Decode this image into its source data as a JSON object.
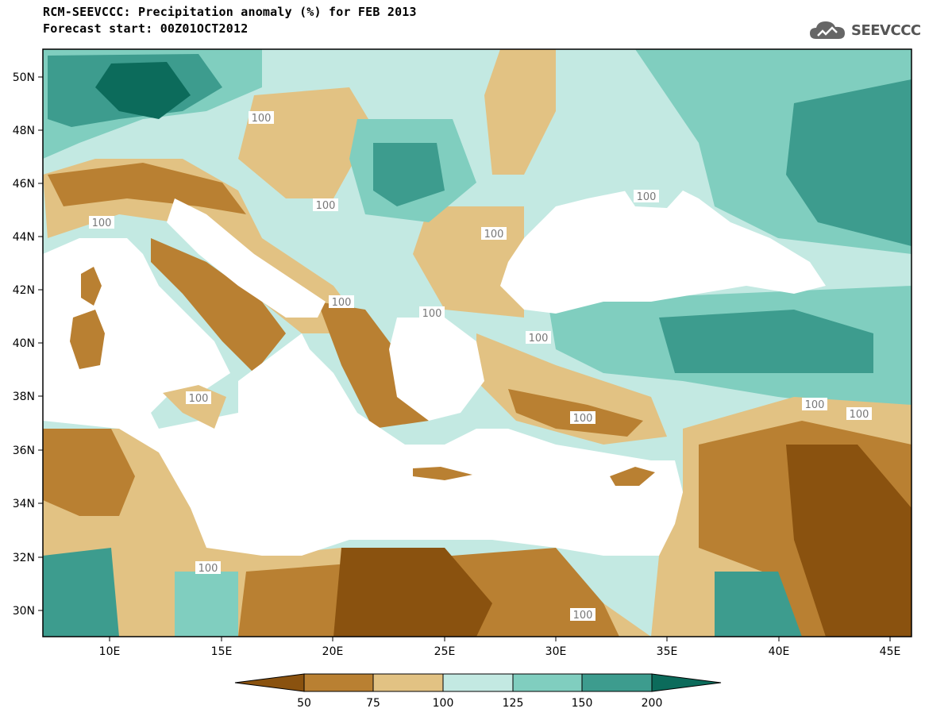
{
  "header": {
    "title_line1": "RCM-SEEVCCC: Precipitation anomaly (%) for FEB 2013",
    "title_line2": "Forecast start: 00Z01OCT2012",
    "logo_text": "SEEVCCC"
  },
  "map": {
    "lat_labels": [
      "50N",
      "48N",
      "46N",
      "44N",
      "42N",
      "40N",
      "38N",
      "36N",
      "34N",
      "32N",
      "30N"
    ],
    "lon_labels": [
      "10E",
      "15E",
      "20E",
      "25E",
      "30E",
      "35E",
      "40E",
      "45E"
    ],
    "contour_label": "100",
    "region_bounds": {
      "lon": [
        7,
        46
      ],
      "lat": [
        29,
        51
      ]
    }
  },
  "legend": {
    "levels": [
      "50",
      "75",
      "100",
      "125",
      "150",
      "200"
    ],
    "colors": [
      "#8a520f",
      "#b98032",
      "#e2c283",
      "#c3e9e2",
      "#80cebf",
      "#3d9c8e",
      "#0c6b5b"
    ]
  },
  "colors": {
    "sea": "#ffffff",
    "lt50": "#8a520f",
    "c50_75": "#b98032",
    "c75_100": "#e2c283",
    "c100_125": "#c3e9e2",
    "c125_150": "#80cebf",
    "c150_200": "#3d9c8e",
    "gt200": "#0c6b5b"
  }
}
